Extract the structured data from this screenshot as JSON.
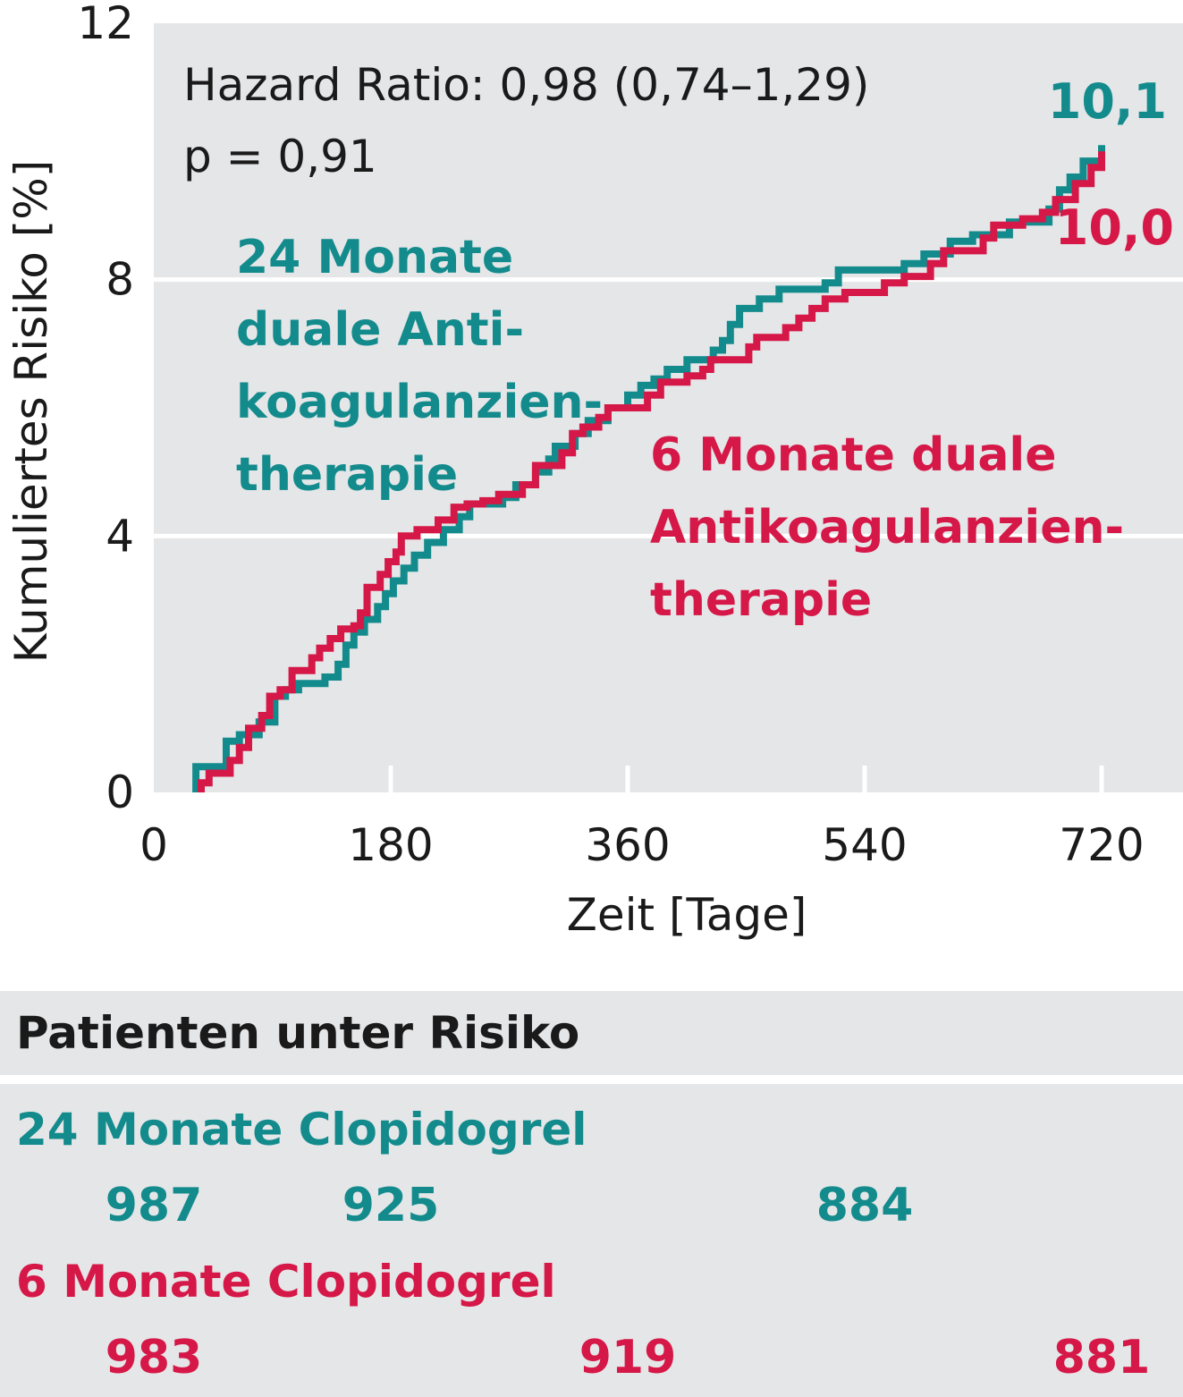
{
  "colors": {
    "teal": "#138b8c",
    "red": "#d51847",
    "panel": "#e5e6e8",
    "text": "#1a1a1a"
  },
  "chart_data": {
    "type": "line",
    "ylabel": "Kumuliertes Risiko [%]",
    "xlabel": "Zeit [Tage]",
    "xlim": [
      0,
      780
    ],
    "ylim": [
      0,
      12
    ],
    "x_ticks": [
      0,
      180,
      360,
      540,
      720
    ],
    "y_ticks": [
      0,
      4,
      8,
      12
    ],
    "grid": "horizontal",
    "annotations": {
      "hazard": "Hazard Ratio: 0,98 (0,74–1,29)",
      "pvalue": "p = 0,91"
    },
    "series": [
      {
        "name": "24 Monate duale Anti-koagulanzien-therapie",
        "label_lines": [
          "24 Monate",
          "duale Anti-",
          "koagulanzien-",
          "therapie"
        ],
        "end_label": "10,1",
        "color": "#138b8c",
        "points": [
          [
            32,
            0
          ],
          [
            32,
            0.4
          ],
          [
            55,
            0.4
          ],
          [
            55,
            0.8
          ],
          [
            65,
            0.8
          ],
          [
            65,
            0.9
          ],
          [
            80,
            0.9
          ],
          [
            80,
            1.1
          ],
          [
            92,
            1.1
          ],
          [
            92,
            1.5
          ],
          [
            100,
            1.5
          ],
          [
            100,
            1.6
          ],
          [
            110,
            1.6
          ],
          [
            110,
            1.7
          ],
          [
            130,
            1.7
          ],
          [
            130,
            1.8
          ],
          [
            140,
            1.8
          ],
          [
            140,
            2.0
          ],
          [
            146,
            2.0
          ],
          [
            146,
            2.3
          ],
          [
            152,
            2.3
          ],
          [
            152,
            2.5
          ],
          [
            160,
            2.5
          ],
          [
            160,
            2.7
          ],
          [
            170,
            2.7
          ],
          [
            170,
            2.9
          ],
          [
            176,
            2.9
          ],
          [
            176,
            3.1
          ],
          [
            182,
            3.1
          ],
          [
            182,
            3.3
          ],
          [
            190,
            3.3
          ],
          [
            190,
            3.5
          ],
          [
            198,
            3.5
          ],
          [
            198,
            3.7
          ],
          [
            208,
            3.7
          ],
          [
            208,
            3.9
          ],
          [
            220,
            3.9
          ],
          [
            220,
            4.1
          ],
          [
            232,
            4.1
          ],
          [
            232,
            4.3
          ],
          [
            240,
            4.3
          ],
          [
            240,
            4.5
          ],
          [
            265,
            4.5
          ],
          [
            265,
            4.6
          ],
          [
            275,
            4.6
          ],
          [
            275,
            4.8
          ],
          [
            290,
            4.8
          ],
          [
            290,
            5.0
          ],
          [
            300,
            5.0
          ],
          [
            300,
            5.2
          ],
          [
            305,
            5.2
          ],
          [
            305,
            5.4
          ],
          [
            320,
            5.4
          ],
          [
            320,
            5.6
          ],
          [
            330,
            5.6
          ],
          [
            330,
            5.8
          ],
          [
            345,
            5.8
          ],
          [
            345,
            6.0
          ],
          [
            360,
            6.0
          ],
          [
            360,
            6.2
          ],
          [
            370,
            6.2
          ],
          [
            370,
            6.35
          ],
          [
            380,
            6.35
          ],
          [
            380,
            6.45
          ],
          [
            390,
            6.45
          ],
          [
            390,
            6.6
          ],
          [
            405,
            6.6
          ],
          [
            405,
            6.75
          ],
          [
            425,
            6.75
          ],
          [
            425,
            6.9
          ],
          [
            432,
            6.9
          ],
          [
            432,
            7.05
          ],
          [
            438,
            7.05
          ],
          [
            438,
            7.3
          ],
          [
            445,
            7.3
          ],
          [
            445,
            7.55
          ],
          [
            460,
            7.55
          ],
          [
            460,
            7.7
          ],
          [
            475,
            7.7
          ],
          [
            475,
            7.85
          ],
          [
            510,
            7.85
          ],
          [
            510,
            7.95
          ],
          [
            520,
            7.95
          ],
          [
            520,
            8.15
          ],
          [
            570,
            8.15
          ],
          [
            570,
            8.25
          ],
          [
            585,
            8.25
          ],
          [
            585,
            8.4
          ],
          [
            605,
            8.4
          ],
          [
            605,
            8.6
          ],
          [
            622,
            8.6
          ],
          [
            622,
            8.7
          ],
          [
            650,
            8.7
          ],
          [
            650,
            8.9
          ],
          [
            680,
            8.9
          ],
          [
            680,
            9.1
          ],
          [
            688,
            9.1
          ],
          [
            688,
            9.4
          ],
          [
            696,
            9.4
          ],
          [
            696,
            9.6
          ],
          [
            706,
            9.6
          ],
          [
            706,
            9.85
          ],
          [
            720,
            9.85
          ],
          [
            720,
            10.1
          ]
        ]
      },
      {
        "name": "6 Monate duale Antikoagulanzien-therapie",
        "label_lines": [
          "6 Monate duale",
          "Antikoagulanzien-",
          "therapie"
        ],
        "end_label": "10,0",
        "color": "#d51847",
        "points": [
          [
            36,
            0
          ],
          [
            36,
            0.15
          ],
          [
            42,
            0.15
          ],
          [
            42,
            0.3
          ],
          [
            58,
            0.3
          ],
          [
            58,
            0.5
          ],
          [
            65,
            0.5
          ],
          [
            65,
            0.7
          ],
          [
            72,
            0.7
          ],
          [
            72,
            1.0
          ],
          [
            82,
            1.0
          ],
          [
            82,
            1.2
          ],
          [
            88,
            1.2
          ],
          [
            88,
            1.5
          ],
          [
            96,
            1.5
          ],
          [
            96,
            1.6
          ],
          [
            105,
            1.6
          ],
          [
            105,
            1.9
          ],
          [
            120,
            1.9
          ],
          [
            120,
            2.1
          ],
          [
            126,
            2.1
          ],
          [
            126,
            2.25
          ],
          [
            134,
            2.25
          ],
          [
            134,
            2.4
          ],
          [
            142,
            2.4
          ],
          [
            142,
            2.55
          ],
          [
            152,
            2.55
          ],
          [
            152,
            2.6
          ],
          [
            157,
            2.6
          ],
          [
            157,
            2.8
          ],
          [
            162,
            2.8
          ],
          [
            162,
            3.2
          ],
          [
            172,
            3.2
          ],
          [
            172,
            3.4
          ],
          [
            178,
            3.4
          ],
          [
            178,
            3.6
          ],
          [
            184,
            3.6
          ],
          [
            184,
            3.75
          ],
          [
            188,
            3.75
          ],
          [
            188,
            4.0
          ],
          [
            200,
            4.0
          ],
          [
            200,
            4.1
          ],
          [
            216,
            4.1
          ],
          [
            216,
            4.25
          ],
          [
            228,
            4.25
          ],
          [
            228,
            4.45
          ],
          [
            238,
            4.45
          ],
          [
            238,
            4.5
          ],
          [
            250,
            4.5
          ],
          [
            250,
            4.55
          ],
          [
            262,
            4.55
          ],
          [
            262,
            4.65
          ],
          [
            280,
            4.65
          ],
          [
            280,
            4.8
          ],
          [
            290,
            4.8
          ],
          [
            290,
            5.1
          ],
          [
            310,
            5.1
          ],
          [
            310,
            5.3
          ],
          [
            318,
            5.3
          ],
          [
            318,
            5.6
          ],
          [
            326,
            5.6
          ],
          [
            326,
            5.7
          ],
          [
            338,
            5.7
          ],
          [
            338,
            5.85
          ],
          [
            345,
            5.85
          ],
          [
            345,
            6.0
          ],
          [
            375,
            6.0
          ],
          [
            375,
            6.2
          ],
          [
            385,
            6.2
          ],
          [
            385,
            6.4
          ],
          [
            405,
            6.4
          ],
          [
            405,
            6.5
          ],
          [
            417,
            6.5
          ],
          [
            417,
            6.6
          ],
          [
            423,
            6.6
          ],
          [
            423,
            6.75
          ],
          [
            452,
            6.75
          ],
          [
            452,
            6.95
          ],
          [
            458,
            6.95
          ],
          [
            458,
            7.1
          ],
          [
            480,
            7.1
          ],
          [
            480,
            7.25
          ],
          [
            490,
            7.25
          ],
          [
            490,
            7.4
          ],
          [
            500,
            7.4
          ],
          [
            500,
            7.55
          ],
          [
            510,
            7.55
          ],
          [
            510,
            7.7
          ],
          [
            525,
            7.7
          ],
          [
            525,
            7.8
          ],
          [
            555,
            7.8
          ],
          [
            555,
            7.95
          ],
          [
            570,
            7.95
          ],
          [
            570,
            8.05
          ],
          [
            590,
            8.05
          ],
          [
            590,
            8.25
          ],
          [
            600,
            8.25
          ],
          [
            600,
            8.45
          ],
          [
            630,
            8.45
          ],
          [
            630,
            8.65
          ],
          [
            638,
            8.65
          ],
          [
            638,
            8.85
          ],
          [
            660,
            8.85
          ],
          [
            660,
            8.95
          ],
          [
            675,
            8.95
          ],
          [
            675,
            9.05
          ],
          [
            685,
            9.05
          ],
          [
            685,
            9.25
          ],
          [
            700,
            9.25
          ],
          [
            700,
            9.5
          ],
          [
            712,
            9.5
          ],
          [
            712,
            9.75
          ],
          [
            720,
            9.75
          ],
          [
            720,
            10.0
          ]
        ]
      }
    ]
  },
  "risk_table": {
    "title": "Patienten unter Risiko",
    "groups": [
      {
        "label": "24 Monate Clopidogrel",
        "color": "#138b8c",
        "counts": [
          {
            "day": 0,
            "value": "987"
          },
          {
            "day": 180,
            "value": "925"
          },
          {
            "day": 540,
            "value": "884"
          }
        ]
      },
      {
        "label": "6 Monate Clopidogrel",
        "color": "#d51847",
        "counts": [
          {
            "day": 0,
            "value": "983"
          },
          {
            "day": 360,
            "value": "919"
          },
          {
            "day": 720,
            "value": "881"
          }
        ]
      }
    ]
  }
}
